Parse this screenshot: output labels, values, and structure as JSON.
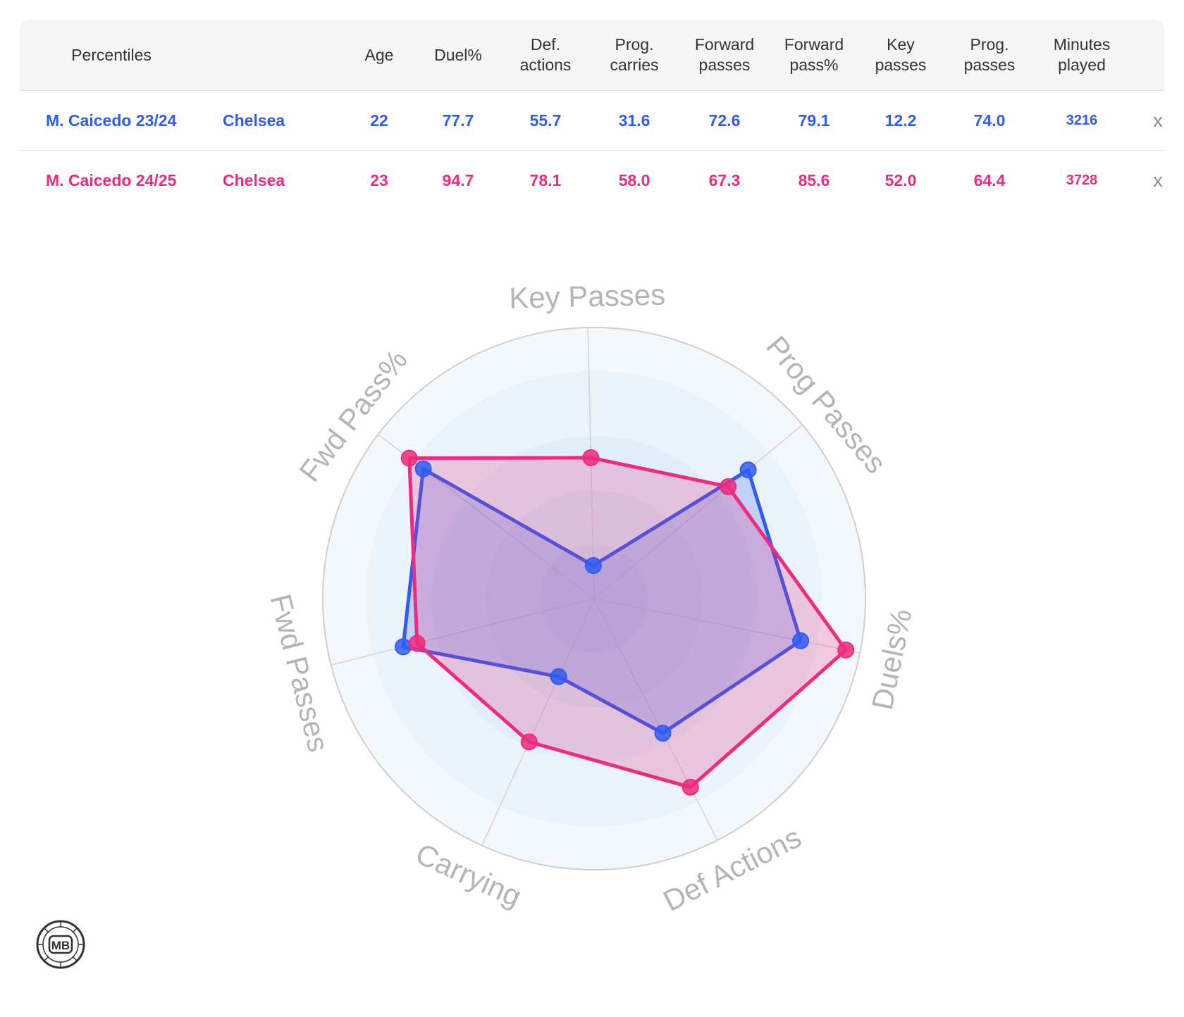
{
  "table": {
    "headers": [
      {
        "key": "percentiles",
        "label": "Percentiles"
      },
      {
        "key": "age",
        "label": "Age"
      },
      {
        "key": "duel",
        "label": "Duel%"
      },
      {
        "key": "def_actions",
        "label": "Def.\nactions"
      },
      {
        "key": "prog_carries",
        "label": "Prog.\ncarries"
      },
      {
        "key": "forward_passes",
        "label": "Forward\npasses"
      },
      {
        "key": "forward_pass_pct",
        "label": "Forward\npass%"
      },
      {
        "key": "key_passes",
        "label": "Key\npasses"
      },
      {
        "key": "prog_passes",
        "label": "Prog.\npasses"
      },
      {
        "key": "minutes",
        "label": "Minutes\nplayed"
      }
    ],
    "rows": [
      {
        "player": "M. Caicedo 23/24",
        "team": "Chelsea",
        "age": "22",
        "duel": "77.7",
        "def_actions": "55.7",
        "prog_carries": "31.6",
        "forward_passes": "72.6",
        "forward_pass_pct": "79.1",
        "key_passes": "12.2",
        "prog_passes": "74.0",
        "minutes": "3216",
        "remove": "x",
        "color": "#2f5cf2"
      },
      {
        "player": "M. Caicedo 24/25",
        "team": "Chelsea",
        "age": "23",
        "duel": "94.7",
        "def_actions": "78.1",
        "prog_carries": "58.0",
        "forward_passes": "67.3",
        "forward_pass_pct": "85.6",
        "key_passes": "52.0",
        "prog_passes": "64.4",
        "minutes": "3728",
        "remove": "x",
        "color": "#ef2a7f"
      }
    ]
  },
  "chart_data": {
    "type": "radar",
    "axes": [
      "Key Passes",
      "Prog Passes",
      "Duels%",
      "Def Actions",
      "Carrying",
      "Fwd Passes",
      "Fwd Pass%"
    ],
    "range": [
      0,
      100
    ],
    "grid": true,
    "series": [
      {
        "name": "M. Caicedo 23/24",
        "color": "#2f5cf2",
        "values": [
          12.2,
          74.0,
          77.7,
          55.7,
          31.6,
          72.6,
          79.1
        ]
      },
      {
        "name": "M. Caicedo 24/25",
        "color": "#ef2a7f",
        "values": [
          52.0,
          64.4,
          94.7,
          78.1,
          58.0,
          67.3,
          85.6
        ]
      }
    ]
  },
  "logo": {
    "text": "MB",
    "icon": "football-logo"
  }
}
